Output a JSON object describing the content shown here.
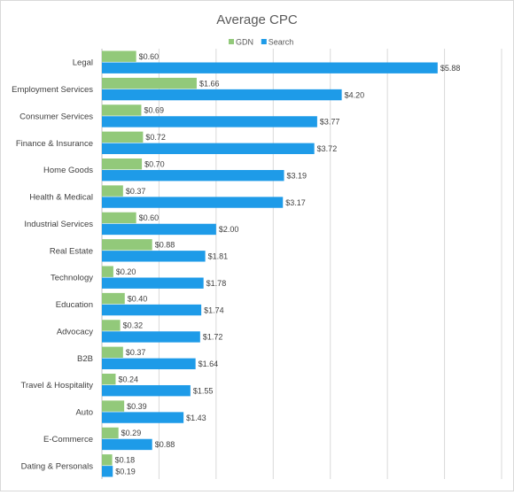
{
  "chart_data": {
    "type": "bar",
    "orientation": "horizontal",
    "title": "Average CPC",
    "categories": [
      "Legal",
      "Employment Services",
      "Consumer Services",
      "Finance & Insurance",
      "Home Goods",
      "Health & Medical",
      "Industrial Services",
      "Real Estate",
      "Technology",
      "Education",
      "Advocacy",
      "B2B",
      "Travel & Hospitality",
      "Auto",
      "E-Commerce",
      "Dating & Personals"
    ],
    "series": [
      {
        "name": "GDN",
        "color": "#92c97a",
        "values": [
          0.6,
          1.66,
          0.69,
          0.72,
          0.7,
          0.37,
          0.6,
          0.88,
          0.2,
          0.4,
          0.32,
          0.37,
          0.24,
          0.39,
          0.29,
          0.18
        ],
        "labels": [
          "$0.60",
          "$1.66",
          "$0.69",
          "$0.72",
          "$0.70",
          "$0.37",
          "$0.60",
          "$0.88",
          "$0.20",
          "$0.40",
          "$0.32",
          "$0.37",
          "$0.24",
          "$0.39",
          "$0.29",
          "$0.18"
        ]
      },
      {
        "name": "Search",
        "color": "#1e9be8",
        "values": [
          5.88,
          4.2,
          3.77,
          3.72,
          3.19,
          3.17,
          2.0,
          1.81,
          1.78,
          1.74,
          1.72,
          1.64,
          1.55,
          1.43,
          0.88,
          0.19
        ],
        "labels": [
          "$5.88",
          "$4.20",
          "$3.77",
          "$3.72",
          "$3.19",
          "$3.17",
          "$2.00",
          "$1.81",
          "$1.78",
          "$1.74",
          "$1.72",
          "$1.64",
          "$1.55",
          "$1.43",
          "$0.88",
          "$0.19"
        ]
      }
    ],
    "xlim": [
      0,
      7
    ],
    "grid": true,
    "legend_position": "top"
  }
}
